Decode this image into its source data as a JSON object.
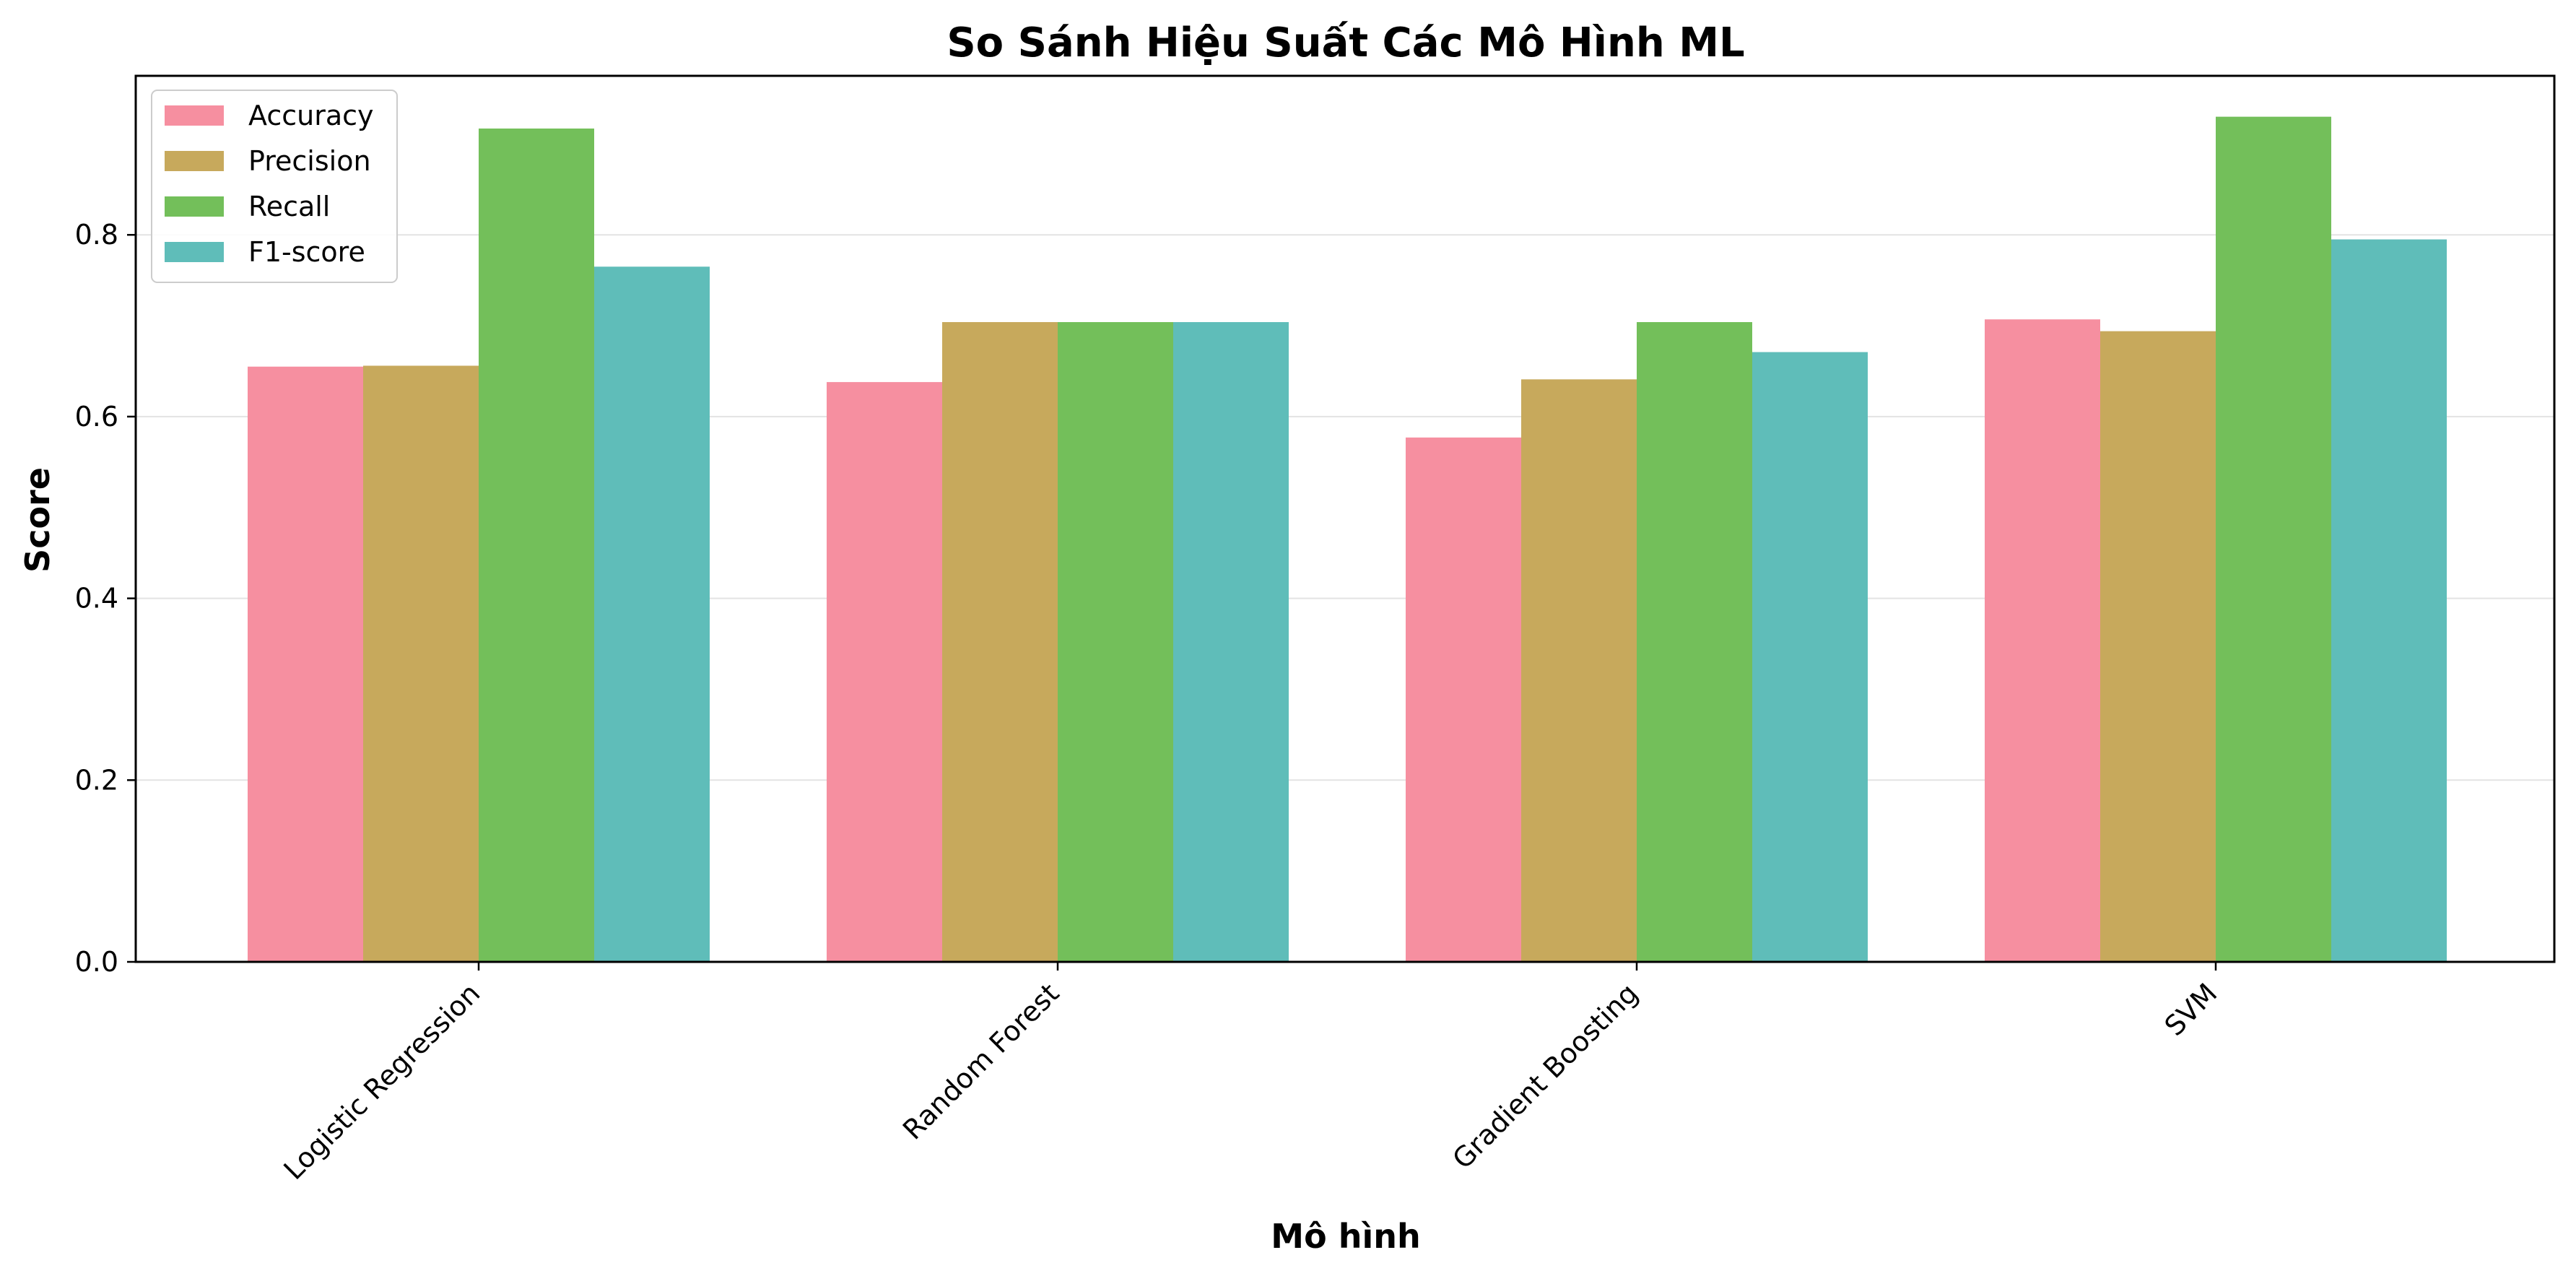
{
  "chart_data": {
    "type": "bar",
    "title": "So Sánh Hiệu Suất Các Mô Hình ML",
    "xlabel": "Mô hình",
    "ylabel": "Score",
    "categories": [
      "Logistic Regression",
      "Random Forest",
      "Gradient Boosting",
      "SVM"
    ],
    "series": [
      {
        "name": "Accuracy",
        "color": "#f68fa0",
        "values": [
          0.655,
          0.638,
          0.577,
          0.707
        ]
      },
      {
        "name": "Precision",
        "color": "#c7a95c",
        "values": [
          0.656,
          0.704,
          0.641,
          0.694
        ]
      },
      {
        "name": "Recall",
        "color": "#73bf5a",
        "values": [
          0.917,
          0.704,
          0.704,
          0.93
        ]
      },
      {
        "name": "F1-score",
        "color": "#5fbdb9",
        "values": [
          0.765,
          0.704,
          0.671,
          0.795
        ]
      }
    ],
    "ylim": [
      0,
      0.975
    ],
    "yticks": [
      "0.0",
      "0.2",
      "0.4",
      "0.6",
      "0.8"
    ],
    "grid": "horizontal",
    "legend_position": "top-left"
  }
}
